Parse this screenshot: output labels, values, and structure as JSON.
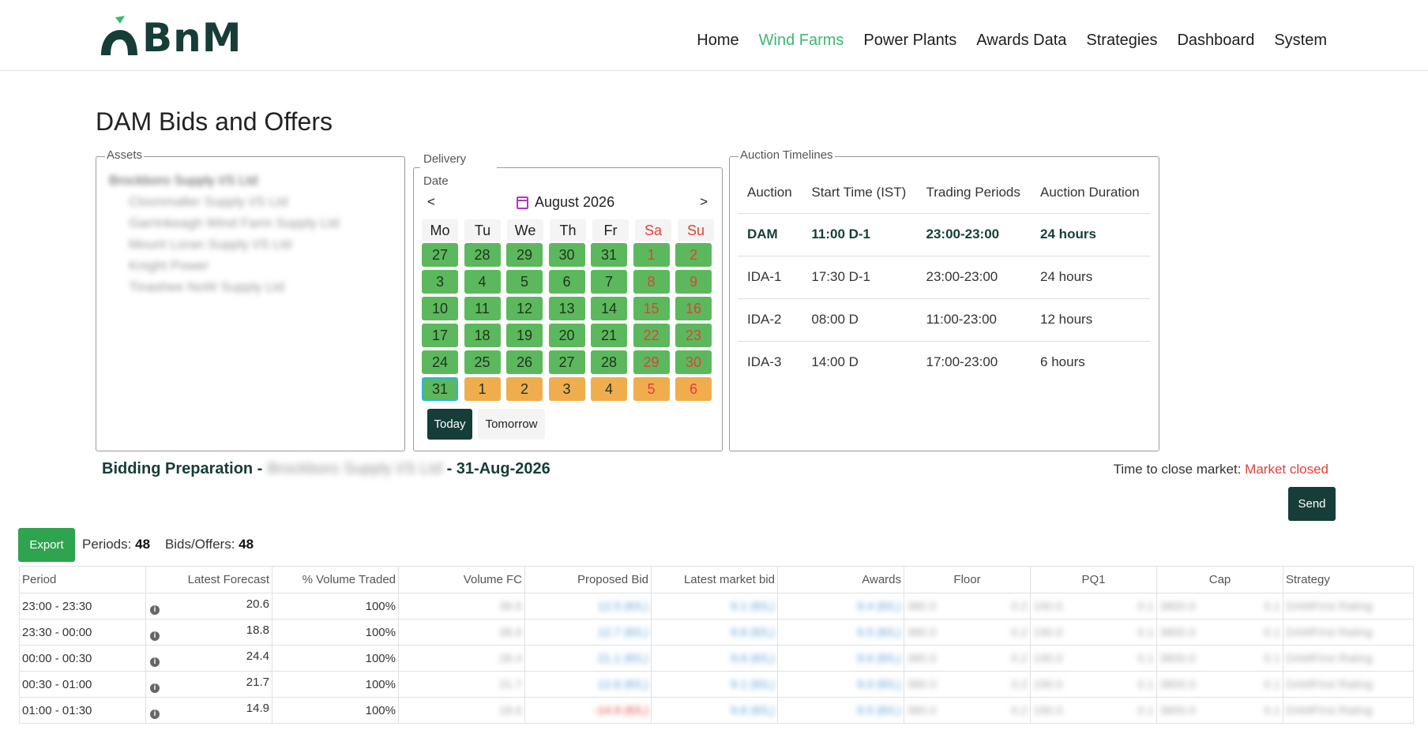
{
  "brand": {
    "name": "BnM"
  },
  "nav": [
    "Home",
    "Wind Farms",
    "Power Plants",
    "Awards Data",
    "Strategies",
    "Dashboard",
    "System"
  ],
  "nav_active": "Wind Farms",
  "page_title": "DAM Bids and Offers",
  "assets": {
    "legend": "Assets",
    "items": [
      "Brockboro Supply I/S Ltd",
      "Cloonmaller Supply I/S Ltd",
      "Garrinkeagh Wind Farm Supply Ltd",
      "Mount Loran Supply I/S Ltd",
      "Knight Power",
      "Tinashee NoW Supply Ltd"
    ]
  },
  "delivery": {
    "legend": "Delivery Date",
    "legend_line1": "Delivery",
    "legend_line2": "Date",
    "prev": "<",
    "next": ">",
    "month_label": "August 2026",
    "weekdays": [
      "Mo",
      "Tu",
      "We",
      "Th",
      "Fr",
      "Sa",
      "Su"
    ],
    "days": [
      "27",
      "28",
      "29",
      "30",
      "31",
      "1",
      "2",
      "3",
      "4",
      "5",
      "6",
      "7",
      "8",
      "9",
      "10",
      "11",
      "12",
      "13",
      "14",
      "15",
      "16",
      "17",
      "18",
      "19",
      "20",
      "21",
      "22",
      "23",
      "24",
      "25",
      "26",
      "27",
      "28",
      "29",
      "30",
      "31",
      "1",
      "2",
      "3",
      "4",
      "5",
      "6"
    ],
    "selected_day": "31",
    "today_label": "Today",
    "tomorrow_label": "Tomorrow",
    "colors": {
      "available": "#5cb85c",
      "next_month": "#f0ad4e",
      "weekend_text": "#e2403a",
      "selected_border": "#29b6e0"
    }
  },
  "auction": {
    "legend": "Auction Timelines",
    "headers": [
      "Auction",
      "Start Time (IST)",
      "Trading Periods",
      "Auction Duration"
    ],
    "rows": [
      [
        "DAM",
        "11:00 D-1",
        "23:00-23:00",
        "24 hours"
      ],
      [
        "IDA-1",
        "17:30 D-1",
        "23:00-23:00",
        "24 hours"
      ],
      [
        "IDA-2",
        "08:00 D",
        "11:00-23:00",
        "12 hours"
      ],
      [
        "IDA-3",
        "14:00 D",
        "17:00-23:00",
        "6 hours"
      ]
    ]
  },
  "bidding": {
    "prefix": "Bidding Preparation -",
    "asset": "Brockboro Supply I/S Ltd",
    "suffix": "- 31-Aug-2026",
    "ttc_label": "Time to close market:",
    "ttc_value": "Market closed",
    "send_label": "Send",
    "export_label": "Export",
    "periods_label": "Periods:",
    "periods_value": "48",
    "bids_label": "Bids/Offers:",
    "bids_value": "48"
  },
  "table": {
    "headers": [
      "Period",
      "Latest Forecast",
      "% Volume Traded",
      "Volume FC",
      "Proposed Bid",
      "Latest market bid",
      "Awards",
      "Floor",
      "PQ1",
      "Cap",
      "Strategy"
    ],
    "rows": [
      {
        "period": "23:00 - 23:30",
        "forecast": "20.6",
        "traded": "100%",
        "volfc": "38.6",
        "proposed": "12.5 (€/L)",
        "market": "9.1 (€/L)",
        "awards": "9.4 (€/L)",
        "floor": "380.0",
        "floor2": "0.2",
        "pq1": "190.0",
        "pq1b": "0.1",
        "cap": "3800.0",
        "capb": "0.1",
        "strategy": "DAMFirst Rating"
      },
      {
        "period": "23:30 - 00:00",
        "forecast": "18.8",
        "traded": "100%",
        "volfc": "38.6",
        "proposed": "12.7 (€/L)",
        "market": "9.6 (€/L)",
        "awards": "9.5 (€/L)",
        "floor": "380.0",
        "floor2": "0.2",
        "pq1": "190.0",
        "pq1b": "0.1",
        "cap": "3800.0",
        "capb": "0.1",
        "strategy": "DAMFirst Rating"
      },
      {
        "period": "00:00 - 00:30",
        "forecast": "24.4",
        "traded": "100%",
        "volfc": "28.4",
        "proposed": "21.1 (€/L)",
        "market": "9.6 (€/L)",
        "awards": "9.6 (€/L)",
        "floor": "380.0",
        "floor2": "0.2",
        "pq1": "190.0",
        "pq1b": "0.1",
        "cap": "3800.0",
        "capb": "0.1",
        "strategy": "DAMFirst Rating"
      },
      {
        "period": "00:30 - 01:00",
        "forecast": "21.7",
        "traded": "100%",
        "volfc": "31.7",
        "proposed": "12.6 (€/L)",
        "market": "9.1 (€/L)",
        "awards": "9.0 (€/L)",
        "floor": "380.0",
        "floor2": "0.2",
        "pq1": "190.0",
        "pq1b": "0.1",
        "cap": "3800.0",
        "capb": "0.1",
        "strategy": "DAMFirst Rating"
      },
      {
        "period": "01:00 - 01:30",
        "forecast": "14.9",
        "traded": "100%",
        "volfc": "18.6",
        "proposed": "-14.9 (€/L)",
        "market": "9.6 (€/L)",
        "awards": "9.5 (€/L)",
        "floor": "380.0",
        "floor2": "0.2",
        "pq1": "190.0",
        "pq1b": "0.1",
        "cap": "3800.0",
        "capb": "0.1",
        "strategy": "DAMFirst Rating"
      }
    ]
  }
}
